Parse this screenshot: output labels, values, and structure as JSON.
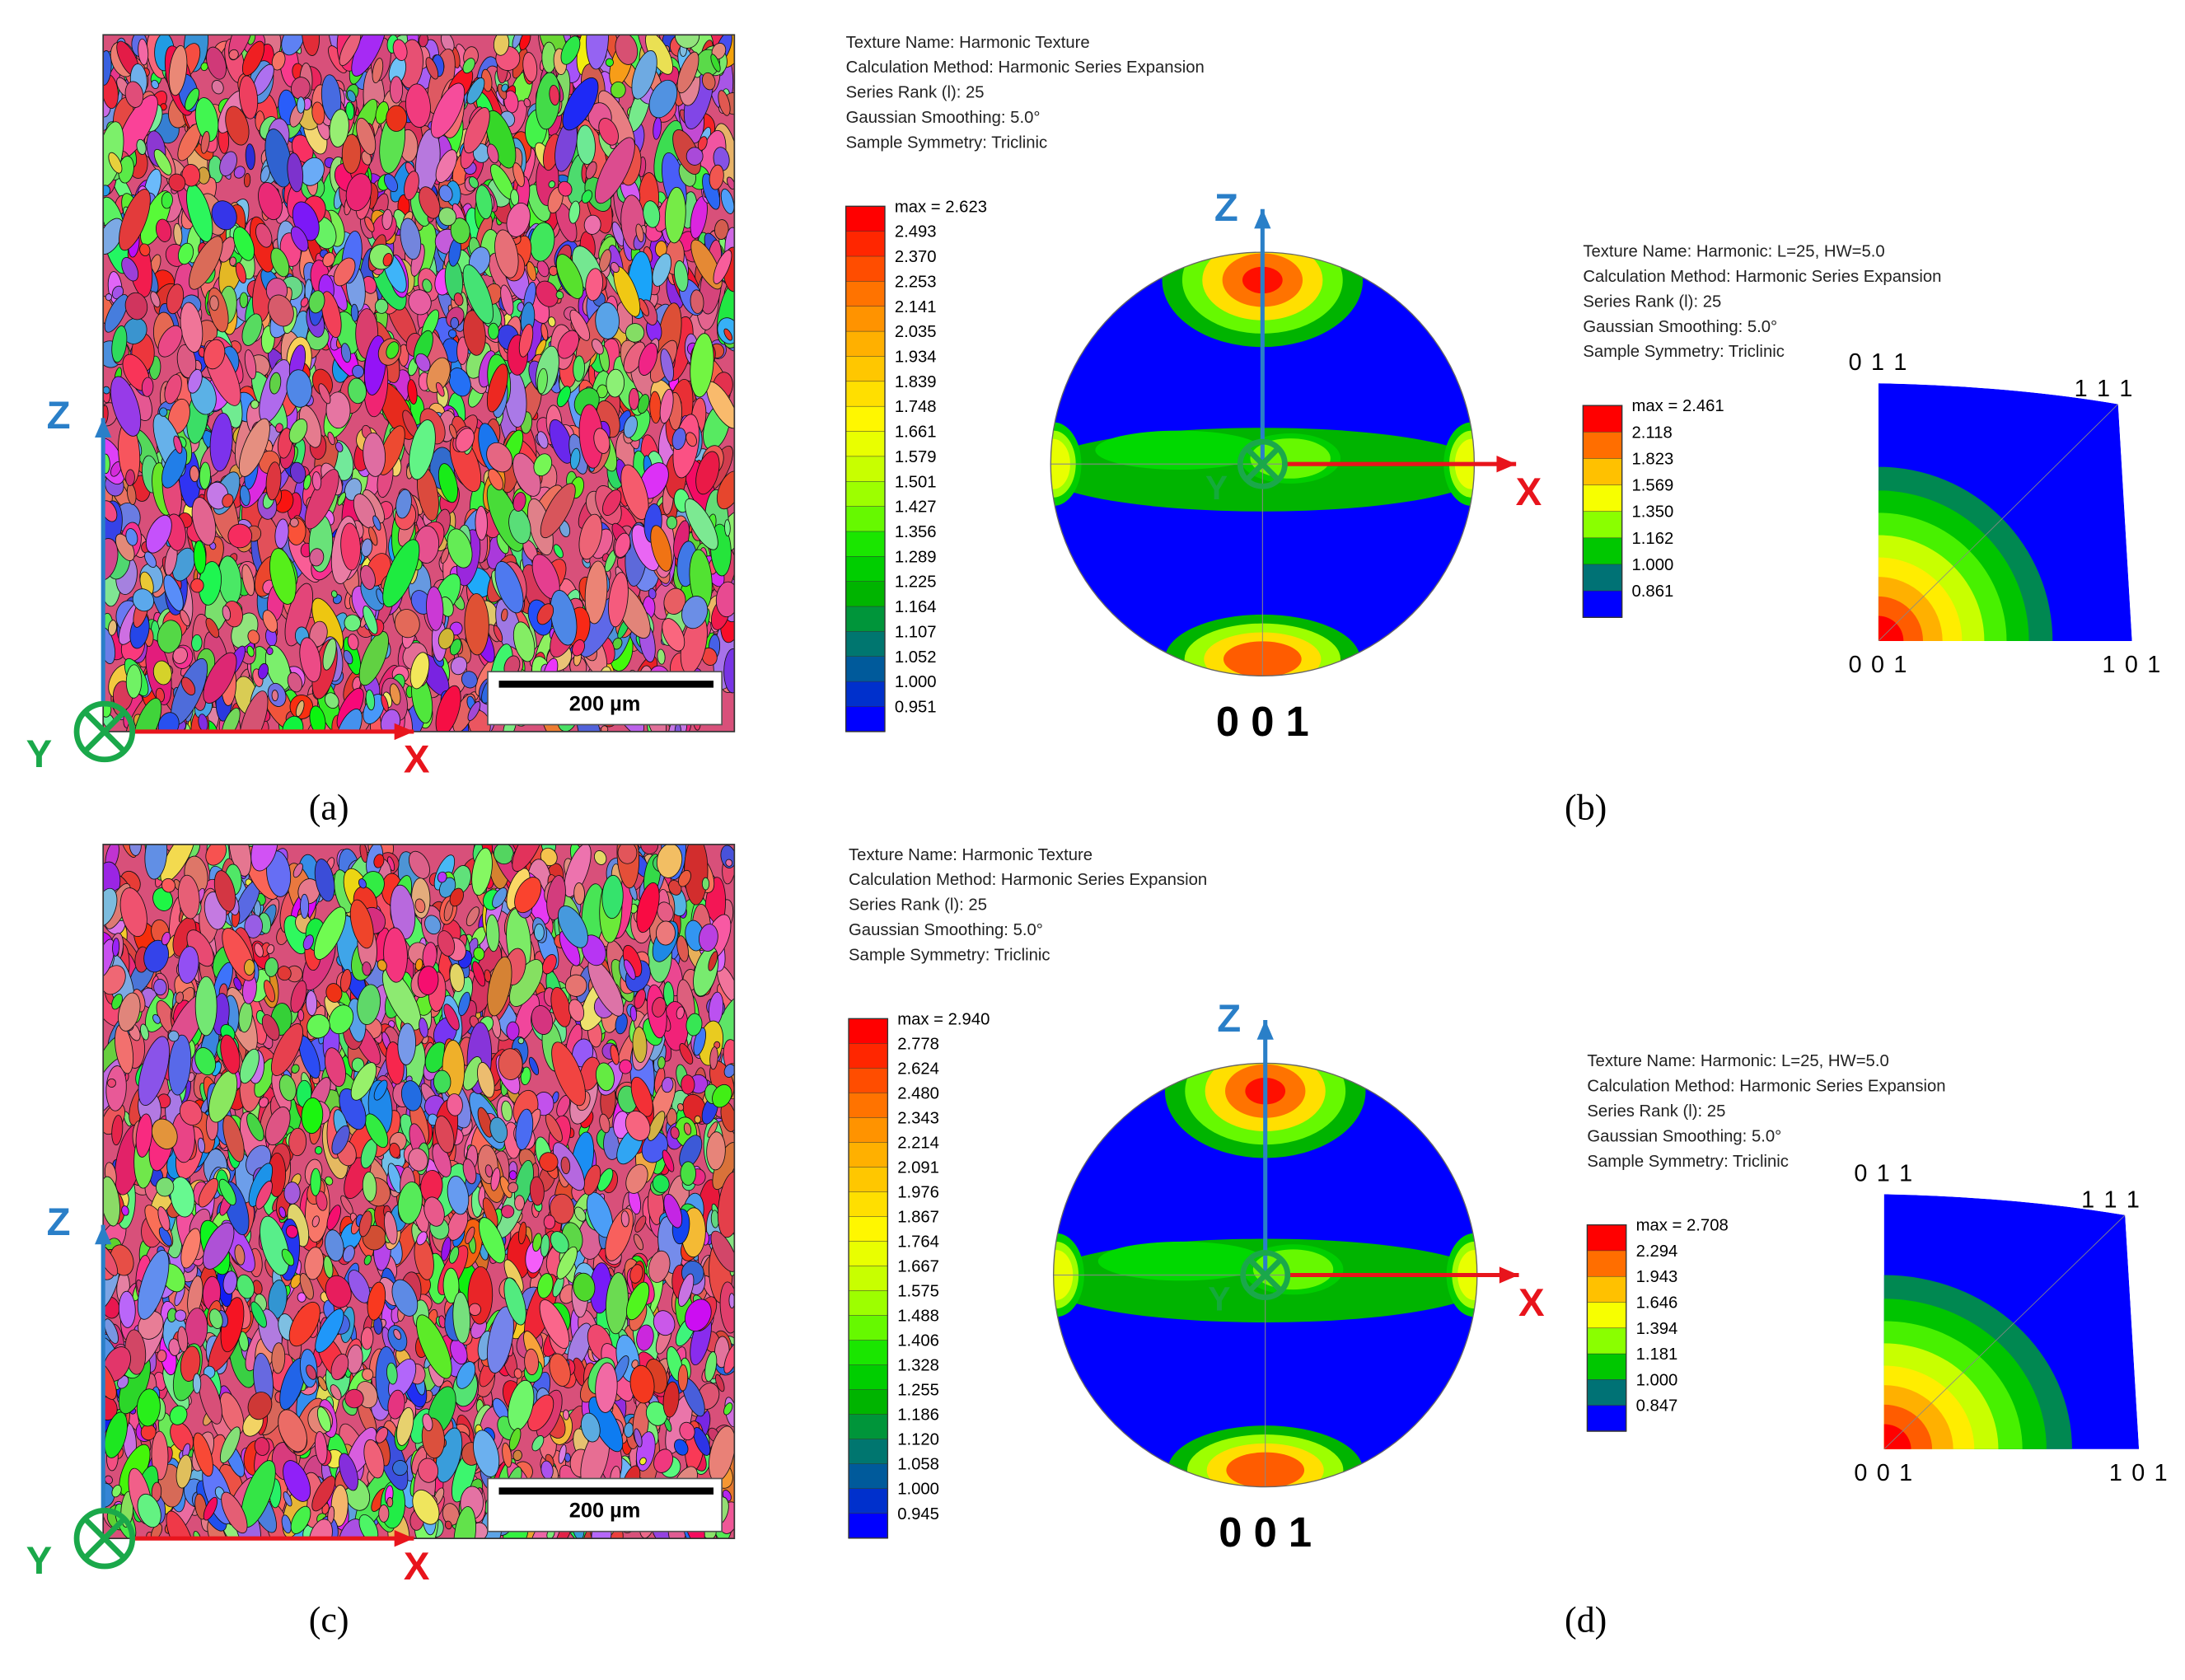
{
  "rows": [
    {
      "map": {
        "scale_bar": "200 µm",
        "axis_z": "Z",
        "axis_x": "X",
        "axis_y": "Y",
        "panel_label": "(a)"
      },
      "pole_figure": {
        "info": [
          "Texture Name: Harmonic Texture",
          "Calculation Method: Harmonic Series Expansion",
          "Series Rank (l): 25",
          "Gaussian Smoothing: 5.0°",
          "Sample Symmetry: Triclinic"
        ],
        "legend_max": "max = 2.623",
        "legend_values": [
          "2.493",
          "2.370",
          "2.253",
          "2.141",
          "2.035",
          "1.934",
          "1.839",
          "1.748",
          "1.661",
          "1.579",
          "1.501",
          "1.427",
          "1.356",
          "1.289",
          "1.225",
          "1.164",
          "1.107",
          "1.052",
          "1.000",
          "0.951"
        ],
        "axis_z": "Z",
        "axis_x": "X",
        "axis_y": "Y",
        "label": "0 0 1",
        "panel_label": "(b)"
      },
      "ipf": {
        "info": [
          "Texture Name: Harmonic: L=25, HW=5.0",
          "Calculation Method: Harmonic Series Expansion",
          "Series Rank (l): 25",
          "Gaussian Smoothing: 5.0°",
          "Sample Symmetry: Triclinic"
        ],
        "legend_max": "max = 2.461",
        "legend_values": [
          "2.118",
          "1.823",
          "1.569",
          "1.350",
          "1.162",
          "1.000",
          "0.861"
        ],
        "corners": [
          "0 1 1",
          "1 1 1",
          "0 0 1",
          "1 0 1"
        ]
      }
    },
    {
      "map": {
        "scale_bar": "200 µm",
        "axis_z": "Z",
        "axis_x": "X",
        "axis_y": "Y",
        "panel_label": "(c)"
      },
      "pole_figure": {
        "info": [
          "Texture Name: Harmonic Texture",
          "Calculation Method: Harmonic Series Expansion",
          "Series Rank (l): 25",
          "Gaussian Smoothing: 5.0°",
          "Sample Symmetry: Triclinic"
        ],
        "legend_max": "max = 2.940",
        "legend_values": [
          "2.778",
          "2.624",
          "2.480",
          "2.343",
          "2.214",
          "2.091",
          "1.976",
          "1.867",
          "1.764",
          "1.667",
          "1.575",
          "1.488",
          "1.406",
          "1.328",
          "1.255",
          "1.186",
          "1.120",
          "1.058",
          "1.000",
          "0.945"
        ],
        "axis_z": "Z",
        "axis_x": "X",
        "axis_y": "Y",
        "label": "0 0 1",
        "panel_label": "(d)"
      },
      "ipf": {
        "info": [
          "Texture Name: Harmonic: L=25, HW=5.0",
          "Calculation Method: Harmonic Series Expansion",
          "Series Rank (l): 25",
          "Gaussian Smoothing: 5.0°",
          "Sample Symmetry: Triclinic"
        ],
        "legend_max": "max = 2.708",
        "legend_values": [
          "2.294",
          "1.943",
          "1.646",
          "1.394",
          "1.181",
          "1.000",
          "0.847"
        ],
        "corners": [
          "0 1 1",
          "1 1 1",
          "0 0 1",
          "1 0 1"
        ]
      }
    }
  ]
}
